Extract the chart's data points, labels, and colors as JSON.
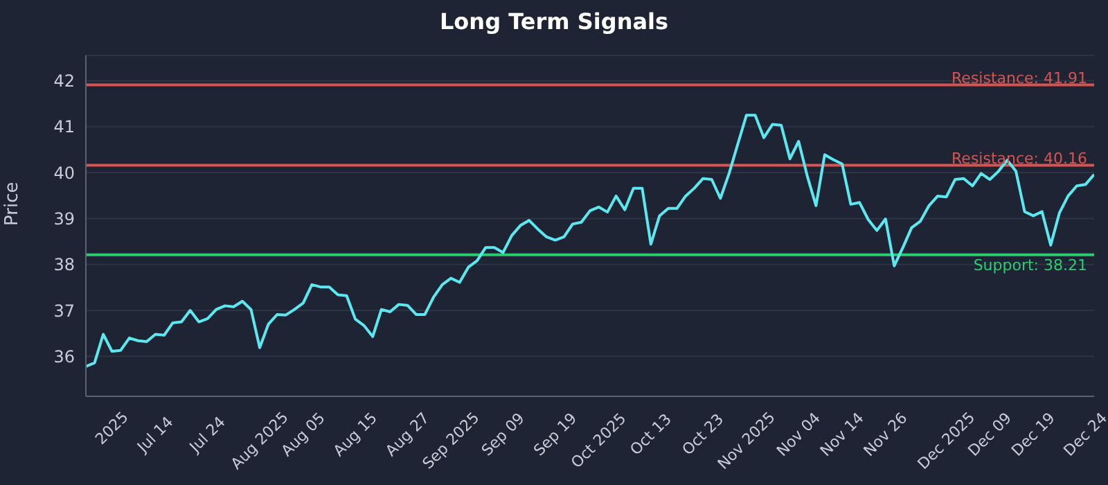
{
  "chart_data": {
    "type": "line",
    "title": "Long Term Signals",
    "ylabel": "Price",
    "categories": [
      null,
      null,
      null,
      "2025",
      null,
      null,
      null,
      null,
      "Jul 14",
      null,
      null,
      null,
      null,
      null,
      "Jul 24",
      null,
      null,
      null,
      null,
      null,
      "Aug 2025",
      null,
      null,
      null,
      null,
      "Aug 05",
      null,
      null,
      null,
      null,
      null,
      "Aug 15",
      null,
      null,
      null,
      null,
      null,
      "Aug 27",
      null,
      null,
      null,
      null,
      "Sep 2025",
      null,
      null,
      null,
      null,
      null,
      "Sep 09",
      null,
      null,
      null,
      null,
      null,
      "Sep 19",
      null,
      null,
      null,
      null,
      "Oct 2025",
      null,
      null,
      null,
      null,
      null,
      "Oct 13",
      null,
      null,
      null,
      null,
      null,
      "Oct 23",
      null,
      null,
      null,
      null,
      "Nov 2025",
      null,
      null,
      null,
      null,
      null,
      "Nov 04",
      null,
      null,
      null,
      null,
      "Nov 14",
      null,
      null,
      null,
      null,
      "Nov 26",
      null,
      null,
      null,
      null,
      null,
      null,
      "Dec 2025",
      null,
      null,
      null,
      null,
      "Dec 09",
      null,
      null,
      null,
      null,
      "Dec 19",
      null,
      null,
      null,
      null,
      null,
      "Dec 24",
      null
    ],
    "series": [
      {
        "color": "#5ce8f0",
        "values": [
          35.78,
          35.86,
          36.48,
          36.11,
          36.13,
          36.4,
          36.34,
          36.32,
          36.48,
          36.46,
          36.73,
          36.75,
          37.0,
          36.75,
          36.82,
          37.02,
          37.1,
          37.08,
          37.2,
          37.02,
          36.19,
          36.7,
          36.91,
          36.9,
          37.02,
          37.16,
          37.56,
          37.51,
          37.51,
          37.34,
          37.32,
          36.81,
          36.67,
          36.43,
          37.02,
          36.97,
          37.13,
          37.11,
          36.91,
          36.91,
          37.29,
          37.56,
          37.7,
          37.61,
          37.94,
          38.08,
          38.37,
          38.37,
          38.26,
          38.63,
          38.85,
          38.96,
          38.77,
          38.6,
          38.53,
          38.6,
          38.88,
          38.92,
          39.17,
          39.25,
          39.14,
          39.49,
          39.19,
          39.66,
          39.66,
          38.44,
          39.06,
          39.22,
          39.22,
          39.49,
          39.66,
          39.87,
          39.85,
          39.44,
          39.98,
          40.62,
          41.25,
          41.25,
          40.76,
          41.05,
          41.03,
          40.3,
          40.68,
          39.92,
          39.28,
          40.39,
          40.28,
          40.19,
          39.31,
          39.35,
          38.98,
          38.74,
          38.99,
          37.97,
          38.37,
          38.8,
          38.94,
          39.28,
          39.49,
          39.47,
          39.85,
          39.87,
          39.71,
          39.98,
          39.85,
          40.03,
          40.27,
          40.03,
          39.15,
          39.06,
          39.15,
          38.42,
          39.12,
          39.49,
          39.71,
          39.74,
          39.96
        ]
      }
    ],
    "ylim": [
      35.13,
      42.55
    ],
    "yticks": [
      36,
      37,
      38,
      39,
      40,
      41,
      42
    ],
    "grid": "y",
    "marker": "none",
    "line_style": "solid",
    "ref_lines": [
      {
        "axis": "y",
        "value": 41.91,
        "label": "Resistance: 41.91",
        "color": "#d9534f"
      },
      {
        "axis": "y",
        "value": 40.16,
        "label": "Resistance: 40.16",
        "color": "#d9534f"
      },
      {
        "axis": "y",
        "value": 38.21,
        "label": "Support: 38.21",
        "color": "#2ecc71"
      }
    ]
  }
}
